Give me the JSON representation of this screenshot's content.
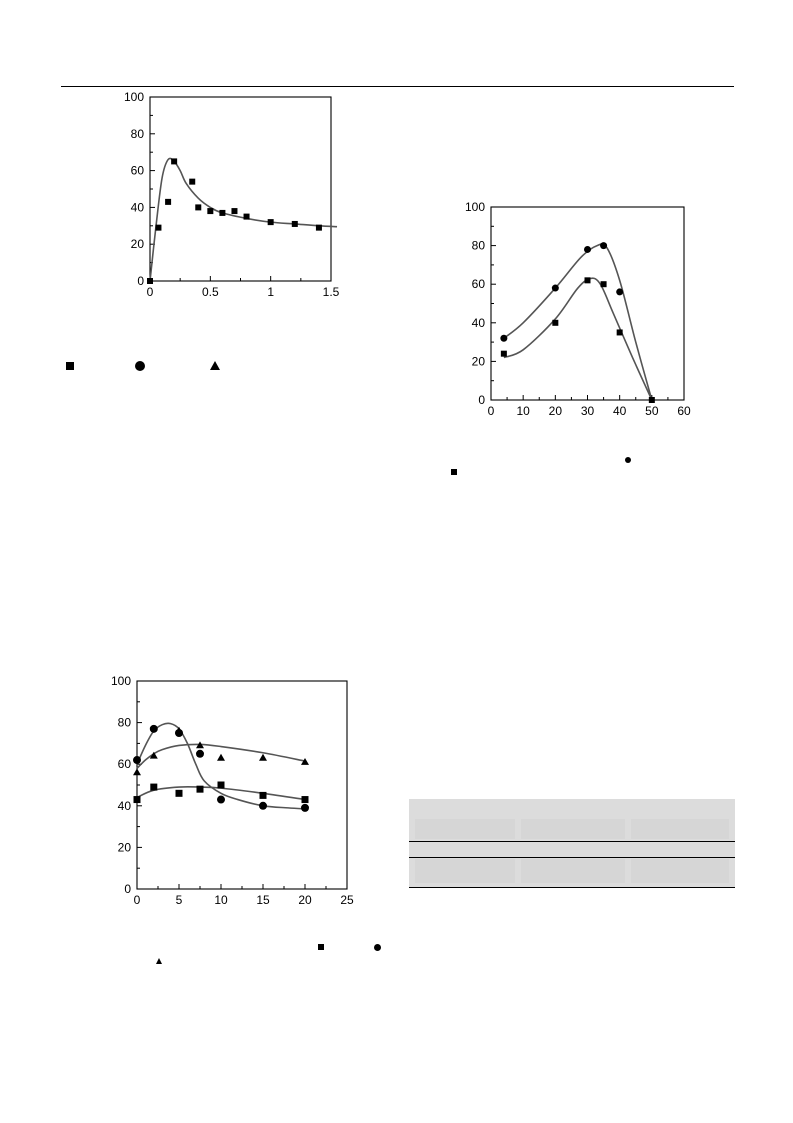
{
  "chart_data": [
    {
      "type": "scatter",
      "title": "",
      "xlabel": "",
      "ylabel": "",
      "xlim": [
        0,
        1.5
      ],
      "ylim": [
        0,
        100
      ],
      "x_ticks": [
        "0",
        "0.5",
        "1",
        "1.5"
      ],
      "y_ticks": [
        "0",
        "20",
        "40",
        "60",
        "80",
        "100"
      ],
      "series": [
        {
          "marker": "square",
          "x": [
            0,
            0.07,
            0.15,
            0.2,
            0.35,
            0.4,
            0.5,
            0.6,
            0.7,
            0.8,
            1.0,
            1.2,
            1.4
          ],
          "y": [
            0,
            29,
            43,
            65,
            54,
            40,
            38,
            37,
            38,
            35,
            32,
            31,
            29
          ]
        }
      ],
      "fit_curve": {
        "x": [
          0,
          0.05,
          0.1,
          0.15,
          0.2,
          0.25,
          0.3,
          0.4,
          0.5,
          0.6,
          0.8,
          1.0,
          1.2,
          1.4,
          1.55
        ],
        "y": [
          0,
          30,
          56,
          66,
          65,
          60,
          53,
          45,
          40,
          37,
          34,
          32,
          31,
          30,
          29.5
        ]
      }
    },
    {
      "type": "line",
      "title": "",
      "xlabel": "",
      "ylabel": "",
      "xlim": [
        0,
        60
      ],
      "ylim": [
        0,
        100
      ],
      "x_ticks": [
        "0",
        "10",
        "20",
        "30",
        "40",
        "50",
        "60"
      ],
      "y_ticks": [
        "0",
        "20",
        "40",
        "60",
        "80",
        "100"
      ],
      "series": [
        {
          "marker": "circle",
          "x": [
            4,
            20,
            30,
            35,
            40
          ],
          "y": [
            32,
            58,
            78,
            80,
            56
          ]
        },
        {
          "marker": "square",
          "x": [
            4,
            20,
            30,
            35,
            40,
            50
          ],
          "y": [
            24,
            40,
            62,
            60,
            35,
            0
          ]
        }
      ],
      "fit_curves": [
        {
          "x": [
            4,
            10,
            20,
            28,
            33,
            36,
            40,
            45,
            50
          ],
          "y": [
            32,
            40,
            58,
            74,
            80,
            79,
            62,
            30,
            0
          ]
        },
        {
          "x": [
            4,
            10,
            20,
            27,
            31,
            34,
            38,
            44,
            50
          ],
          "y": [
            22,
            26,
            42,
            58,
            63,
            60,
            45,
            22,
            0
          ]
        }
      ]
    },
    {
      "type": "line",
      "title": "",
      "xlabel": "",
      "ylabel": "",
      "xlim": [
        0,
        25
      ],
      "ylim": [
        0,
        100
      ],
      "x_ticks": [
        "0",
        "5",
        "10",
        "15",
        "20",
        "25"
      ],
      "y_ticks": [
        "0",
        "20",
        "40",
        "60",
        "80",
        "100"
      ],
      "series": [
        {
          "marker": "circle",
          "x": [
            0,
            2,
            5,
            7.5,
            10,
            15,
            20
          ],
          "y": [
            62,
            77,
            75,
            65,
            43,
            40,
            39
          ]
        },
        {
          "marker": "triangle",
          "x": [
            0,
            2,
            5,
            7.5,
            10,
            15,
            20
          ],
          "y": [
            56,
            64,
            76,
            69,
            63,
            63,
            61
          ]
        },
        {
          "marker": "square",
          "x": [
            0,
            2,
            5,
            7.5,
            10,
            15,
            20
          ],
          "y": [
            43,
            49,
            46,
            48,
            50,
            45,
            43
          ]
        }
      ],
      "fit_curves": [
        {
          "x": [
            0,
            1,
            2,
            3,
            4,
            5,
            6,
            7,
            8,
            10,
            12,
            15,
            18,
            20
          ],
          "y": [
            60,
            69,
            76,
            79,
            79.5,
            77,
            70,
            60,
            52,
            46,
            43,
            40,
            39,
            38.5
          ]
        },
        {
          "x": [
            0,
            1,
            2,
            3,
            5,
            7.5,
            10,
            15,
            20
          ],
          "y": [
            58,
            62,
            65,
            67,
            69,
            69.5,
            68.5,
            65.5,
            61.5
          ]
        },
        {
          "x": [
            0,
            2,
            5,
            7.5,
            10,
            15,
            20
          ],
          "y": [
            44,
            47.5,
            49,
            49,
            48.5,
            46,
            43
          ]
        }
      ]
    }
  ]
}
